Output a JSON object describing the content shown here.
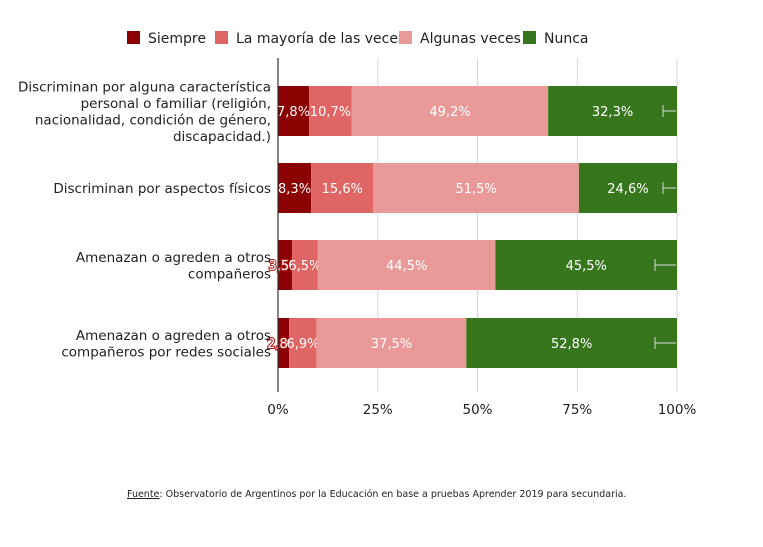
{
  "chart_data": {
    "type": "bar",
    "orientation": "horizontal",
    "stacked": true,
    "normalized": true,
    "categories": [
      [
        "Discriminan por alguna característica",
        "personal o familiar (religión,",
        "nacionalidad, condición de género,",
        "discapacidad.)"
      ],
      [
        "Discriminan por aspectos físicos"
      ],
      [
        "Amenazan o agreden a otros",
        "compañeros"
      ],
      [
        "Amenazan o agreden a otros",
        "compañeros por redes sociales"
      ]
    ],
    "series": [
      {
        "name": "Siempre",
        "color": "#8b0000",
        "values": [
          7.8,
          8.3,
          3.5,
          2.8
        ],
        "labels": [
          "7,8%",
          "8,3%",
          "3,5%",
          "2,8%"
        ]
      },
      {
        "name": "La mayoría de las veces",
        "color": "#e06666",
        "values": [
          10.7,
          15.6,
          6.5,
          6.9
        ],
        "labels": [
          "10,7%",
          "15,6%",
          "6,5%",
          "6,9%"
        ]
      },
      {
        "name": "Algunas veces",
        "color": "#ea9999",
        "values": [
          49.2,
          51.5,
          44.5,
          37.5
        ],
        "labels": [
          "49,2%",
          "51,5%",
          "44,5%",
          "37,5%"
        ]
      },
      {
        "name": "Nunca",
        "color": "#38761d",
        "values": [
          32.3,
          24.6,
          45.5,
          52.8
        ],
        "labels": [
          "32,3%",
          "24,6%",
          "45,5%",
          "52,8%"
        ]
      }
    ],
    "xlim": [
      0,
      100
    ],
    "xticks": [
      "0%",
      "25%",
      "50%",
      "75%",
      "100%"
    ],
    "gridlines": true,
    "legend": "top",
    "error_bars_on": "Nunca"
  },
  "source": {
    "label": "Fuente",
    "text": ": Observatorio de Argentinos por la Educación en base a pruebas Aprender 2019 para secundaria."
  }
}
